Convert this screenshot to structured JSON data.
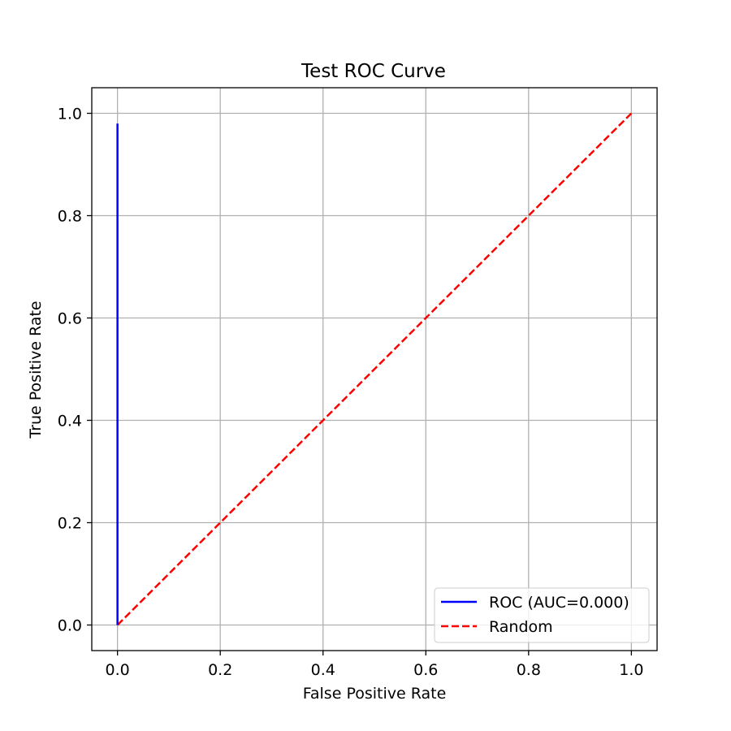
{
  "chart_data": {
    "type": "line",
    "title": "Test ROC Curve",
    "xlabel": "False Positive Rate",
    "ylabel": "True Positive Rate",
    "xlim": [
      -0.05,
      1.05
    ],
    "ylim": [
      -0.05,
      1.05
    ],
    "xticks": [
      0.0,
      0.2,
      0.4,
      0.6,
      0.8,
      1.0
    ],
    "yticks": [
      0.0,
      0.2,
      0.4,
      0.6,
      0.8,
      1.0
    ],
    "xtick_labels": [
      "0.0",
      "0.2",
      "0.4",
      "0.6",
      "0.8",
      "1.0"
    ],
    "ytick_labels": [
      "0.0",
      "0.2",
      "0.4",
      "0.6",
      "0.8",
      "1.0"
    ],
    "grid": true,
    "legend_position": "lower-right",
    "series": [
      {
        "name": "ROC (AUC=0.000)",
        "color": "#0000ff",
        "style": "solid",
        "x": [
          0.0,
          0.0
        ],
        "y": [
          0.0,
          0.98
        ]
      },
      {
        "name": "Random",
        "color": "#ff0000",
        "style": "dashed",
        "x": [
          0.0,
          1.0
        ],
        "y": [
          0.0,
          1.0
        ]
      }
    ]
  }
}
